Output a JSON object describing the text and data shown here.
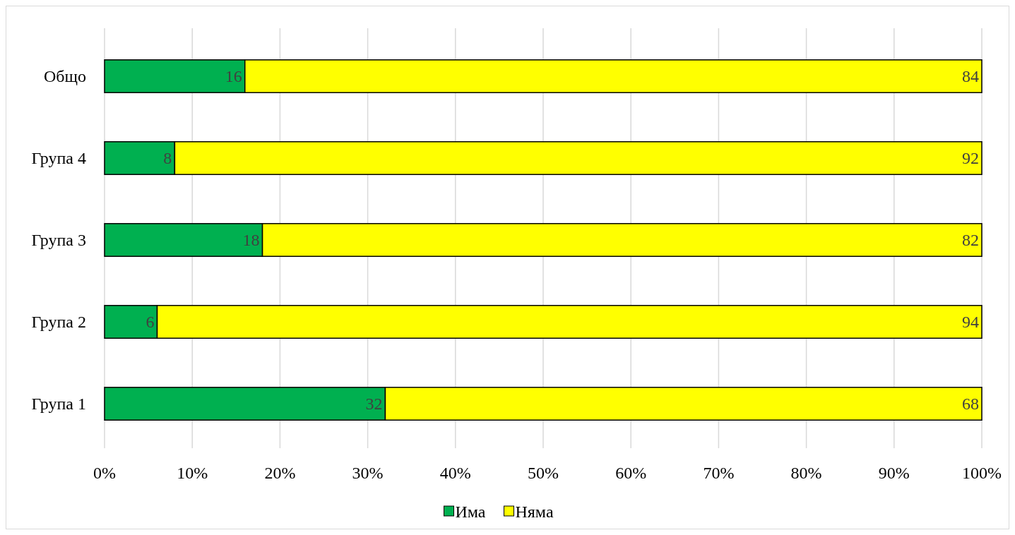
{
  "chart_data": {
    "type": "bar",
    "orientation": "horizontal",
    "stacked": true,
    "categories": [
      "Общо",
      "Група 4",
      "Група 3",
      "Група 2",
      "Група 1"
    ],
    "series": [
      {
        "name": "Има",
        "color": "#00b050",
        "values": [
          16,
          8,
          18,
          6,
          32
        ]
      },
      {
        "name": "Няма",
        "color": "#ffff00",
        "values": [
          84,
          92,
          82,
          94,
          68
        ]
      }
    ],
    "xlim": [
      0,
      100
    ],
    "xticks": [
      {
        "value": 0,
        "label": "0%"
      },
      {
        "value": 10,
        "label": "10%"
      },
      {
        "value": 20,
        "label": "20%"
      },
      {
        "value": 30,
        "label": "30%"
      },
      {
        "value": 40,
        "label": "40%"
      },
      {
        "value": 50,
        "label": "50%"
      },
      {
        "value": 60,
        "label": "60%"
      },
      {
        "value": 70,
        "label": "70%"
      },
      {
        "value": 80,
        "label": "80%"
      },
      {
        "value": 90,
        "label": "90%"
      },
      {
        "value": 100,
        "label": "100%"
      }
    ],
    "grid": "x",
    "legend": "bottom",
    "data_labels": true
  }
}
